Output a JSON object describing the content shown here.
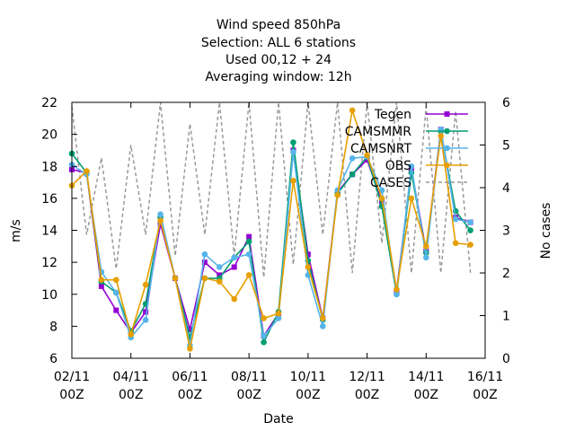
{
  "chart_data": {
    "type": "line",
    "title_lines": [
      "Wind speed 850hPa",
      "Selection: ALL      6 stations",
      "Used  00,12  + 24",
      "Averaging window: 12h"
    ],
    "xlabel": "Date",
    "ylabel": "m/s",
    "y2label": "No cases",
    "x_ticks": [
      {
        "x": 0,
        "line1": "02/11",
        "line2": "00Z"
      },
      {
        "x": 2,
        "line1": "04/11",
        "line2": "00Z"
      },
      {
        "x": 4,
        "line1": "06/11",
        "line2": "00Z"
      },
      {
        "x": 6,
        "line1": "08/11",
        "line2": "00Z"
      },
      {
        "x": 8,
        "line1": "10/11",
        "line2": "00Z"
      },
      {
        "x": 10,
        "line1": "12/11",
        "line2": "00Z"
      },
      {
        "x": 12,
        "line1": "14/11",
        "line2": "00Z"
      },
      {
        "x": 14,
        "line1": "16/11",
        "line2": "00Z"
      }
    ],
    "xlim": [
      0,
      14
    ],
    "ylim": [
      6,
      22
    ],
    "yticks": [
      6,
      8,
      10,
      12,
      14,
      16,
      18,
      20,
      22
    ],
    "y2lim": [
      0,
      6
    ],
    "y2ticks": [
      0,
      1,
      2,
      3,
      4,
      5,
      6
    ],
    "x": [
      0,
      0.5,
      1,
      1.5,
      2,
      2.5,
      3,
      3.5,
      4,
      4.5,
      5,
      5.5,
      6,
      6.5,
      7,
      7.5,
      8,
      8.5,
      9,
      9.5,
      10,
      10.5,
      11,
      11.5,
      12,
      12.5,
      13,
      13.5
    ],
    "series": [
      {
        "name": "Tegen",
        "color": "#9400d3",
        "marker": "square",
        "values": [
          17.8,
          17.6,
          10.5,
          9.0,
          7.6,
          8.9,
          14.4,
          11.0,
          7.8,
          12.0,
          11.2,
          11.7,
          13.6,
          7.4,
          8.8,
          19.0,
          12.5,
          8.5,
          16.4,
          17.5,
          18.4,
          15.8,
          10.2,
          17.8,
          12.7,
          20.3,
          14.8,
          14.5
        ]
      },
      {
        "name": "CAMSMMR",
        "color": "#009e73",
        "marker": "circle",
        "values": [
          18.8,
          17.6,
          10.8,
          10.1,
          7.7,
          9.4,
          14.8,
          11.0,
          7.3,
          11.0,
          11.0,
          12.3,
          13.3,
          7.0,
          8.9,
          19.5,
          12.1,
          8.4,
          16.3,
          17.5,
          18.6,
          15.5,
          10.0,
          17.6,
          12.6,
          20.2,
          15.2,
          14.0
        ]
      },
      {
        "name": "CAMSNRT",
        "color": "#56b4e9",
        "marker": "circle",
        "values": [
          18.1,
          17.5,
          11.4,
          10.1,
          7.3,
          8.4,
          15.0,
          11.0,
          6.8,
          12.5,
          11.7,
          12.3,
          12.5,
          7.4,
          8.5,
          18.9,
          11.2,
          8.0,
          16.5,
          18.5,
          18.6,
          16.5,
          10.0,
          18.0,
          12.3,
          20.3,
          14.7,
          14.5
        ]
      },
      {
        "name": "OBS",
        "color": "#e69f00",
        "marker": "circle",
        "values": [
          16.8,
          17.7,
          10.9,
          10.9,
          7.5,
          10.6,
          14.6,
          11.0,
          6.6,
          11.0,
          10.8,
          9.7,
          11.2,
          8.5,
          8.8,
          17.1,
          11.7,
          8.5,
          16.2,
          21.5,
          18.7,
          16.0,
          10.3,
          16.0,
          13.0,
          19.9,
          13.2,
          13.1
        ]
      },
      {
        "name": "CASES",
        "color": "#999999",
        "axis": "y2",
        "dashed": true,
        "values": [
          5.9,
          2.9,
          4.7,
          2.1,
          5.0,
          2.9,
          6.0,
          2.4,
          5.5,
          2.9,
          6.0,
          2.4,
          6.0,
          1.9,
          6.0,
          2.2,
          6.0,
          2.9,
          6.0,
          2.0,
          6.0,
          2.7,
          6.0,
          2.0,
          5.9,
          2.0,
          5.8,
          2.0
        ]
      }
    ],
    "grid": false,
    "legend_position": "top-right"
  }
}
